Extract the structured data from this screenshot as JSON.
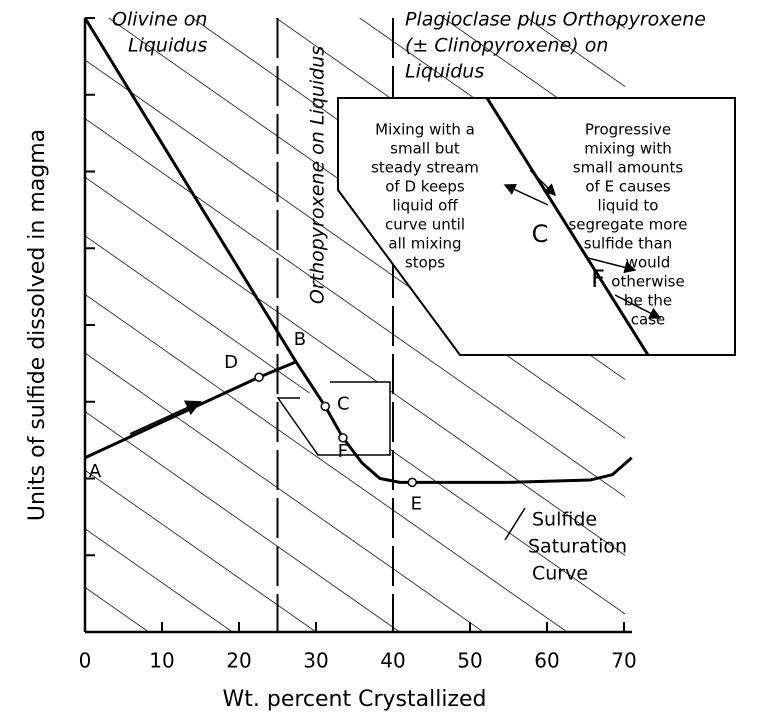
{
  "chart_data": {
    "type": "line",
    "xlabel": "Wt. percent Crystallized",
    "ylabel": "Units of sulfide dissolved in magma",
    "xlim": [
      0,
      70
    ],
    "xticks": [
      0,
      10,
      20,
      30,
      40,
      50,
      60,
      70
    ],
    "ylim": [
      0,
      8
    ],
    "yticks": [
      0,
      1,
      2,
      3,
      4,
      5,
      6,
      7,
      8
    ],
    "series": [
      {
        "color": "#000000",
        "x": [
          0,
          27.4,
          31.2,
          33.5,
          36,
          38.3,
          40.9,
          42.5,
          55,
          65.6,
          68.5,
          71
        ],
        "values": [
          8,
          3.52,
          2.94,
          2.53,
          2.2,
          2.0,
          1.95,
          1.95,
          1.95,
          1.98,
          2.05,
          2.27
        ]
      },
      {
        "color": "#000000",
        "x": [
          0,
          22.6,
          27.4
        ],
        "values": [
          2.27,
          3.32,
          3.52
        ]
      }
    ],
    "points": [
      {
        "label": "A",
        "x": 0,
        "y": 2.27,
        "marker": false
      },
      {
        "label": "D",
        "x": 22.6,
        "y": 3.32,
        "marker": true
      },
      {
        "label": "B",
        "x": 27.4,
        "y": 3.52,
        "marker": false
      },
      {
        "label": "C",
        "x": 31.2,
        "y": 2.94,
        "marker": true
      },
      {
        "label": "F",
        "x": 33.5,
        "y": 2.53,
        "marker": true
      },
      {
        "label": "E",
        "x": 42.5,
        "y": 1.95,
        "marker": true
      }
    ],
    "boundaries": [
      25,
      40
    ],
    "region_labels": [
      [
        "Olivine on",
        "Liquidus"
      ],
      [
        "Orthopyroxene on Liquidus"
      ],
      [
        "Plagioclase plus Orthopyroxene",
        "(± Clinopyroxene) on",
        "Liquidus"
      ]
    ],
    "curve_label": [
      "Sulfide",
      "Saturation",
      "Curve"
    ],
    "inset": {
      "left_text": [
        "Mixing with a",
        "small but",
        "steady stream",
        "of D keeps",
        "liquid off",
        "curve until",
        "all mixing",
        "stops"
      ],
      "right_text": [
        "Progressive",
        "mixing with",
        "small amounts",
        "of E causes",
        "liquid to",
        "segregate more",
        "sulfide than",
        "would",
        "otherwise",
        "be the",
        "case"
      ],
      "labels": [
        "C",
        "F"
      ]
    }
  }
}
